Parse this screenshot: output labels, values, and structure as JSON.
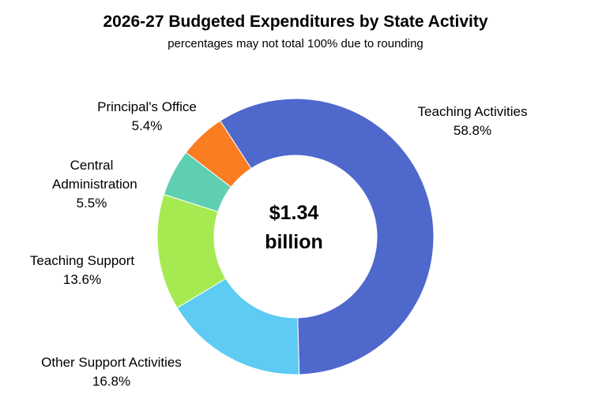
{
  "chart_data": {
    "type": "pie",
    "title": "2026-27 Budgeted Expenditures by State Activity",
    "subtitle": "percentages may not total 100% due to rounding",
    "center_label_line1": "$1.34",
    "center_label_line2": "billion",
    "slices": [
      {
        "name": "Teaching Activities",
        "value": 58.8,
        "label": "58.8%",
        "color": "#4f68cc"
      },
      {
        "name": "Other Support Activities",
        "value": 16.8,
        "label": "16.8%",
        "color": "#5ecbf2"
      },
      {
        "name": "Teaching Support",
        "value": 13.6,
        "label": "13.6%",
        "color": "#a6ea52"
      },
      {
        "name": "Central Administration",
        "value": 5.5,
        "label": "5.5%",
        "color": "#5fcfb2"
      },
      {
        "name": "Principal's Office",
        "value": 5.4,
        "label": "5.4%",
        "color": "#fb7d22"
      }
    ],
    "legend": "none"
  }
}
